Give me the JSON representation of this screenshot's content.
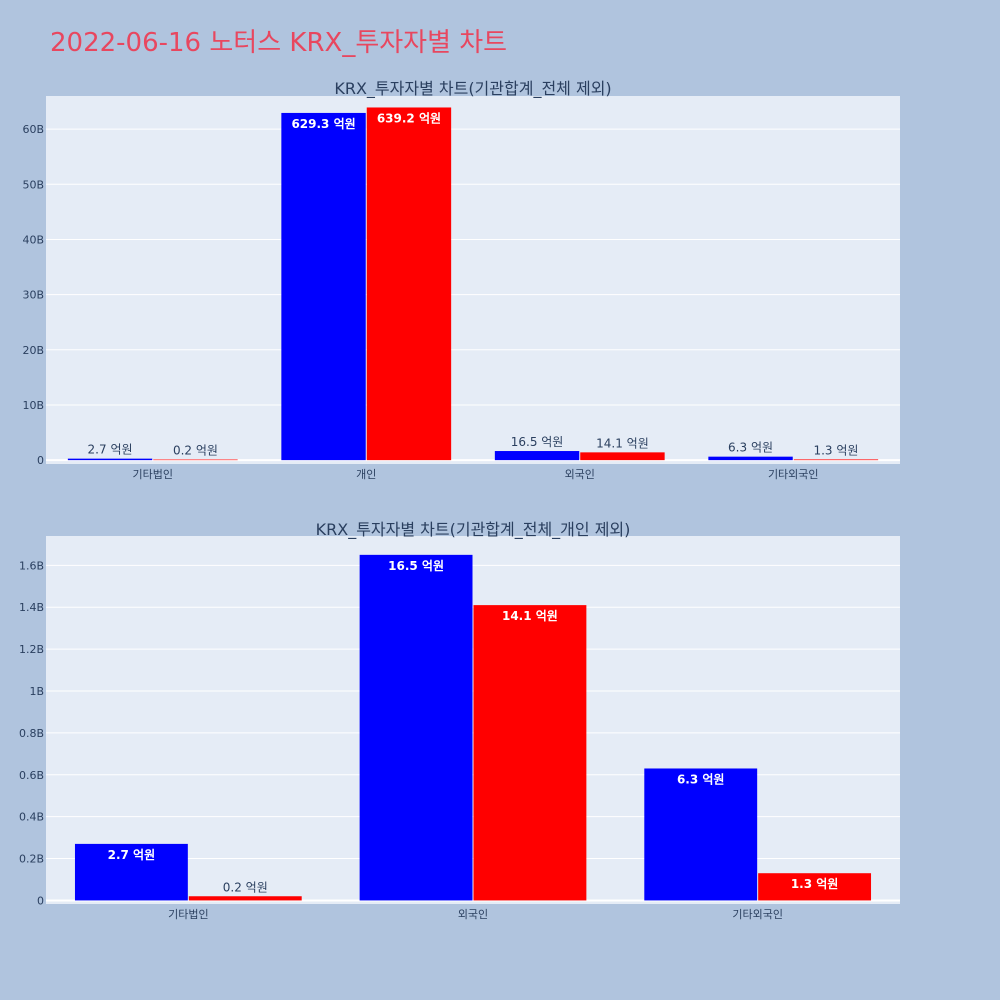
{
  "page": {
    "title": "2022-06-16 노터스 KRX_투자자별 차트"
  },
  "colors": {
    "background": "#b0c4de",
    "plot_background": "#e5ecf6",
    "title": "#e8475f",
    "series_buy": "#0000ff",
    "series_sell": "#ff0000"
  },
  "chart_data": [
    {
      "type": "bar",
      "title": "KRX_투자자별 차트(기관합계_전체 제외)",
      "categories": [
        "기타법인",
        "개인",
        "외국인",
        "기타외국인"
      ],
      "series": [
        {
          "color": "#0000ff",
          "values": [
            270000000,
            62930000000,
            1650000000,
            630000000
          ],
          "labels": [
            "2.7 억원",
            "629.3 억원",
            "16.5 억원",
            "6.3 억원"
          ]
        },
        {
          "color": "#ff0000",
          "values": [
            20000000,
            63920000000,
            1410000000,
            130000000
          ],
          "labels": [
            "0.2 억원",
            "639.2 억원",
            "14.1 억원",
            "1.3 억원"
          ]
        }
      ],
      "ylim": [
        -700000000,
        66000000000
      ],
      "yticks": [
        0,
        10000000000,
        20000000000,
        30000000000,
        40000000000,
        50000000000,
        60000000000
      ],
      "ytick_labels": [
        "0",
        "10B",
        "20B",
        "30B",
        "40B",
        "50B",
        "60B"
      ],
      "grid": true,
      "legend": "none"
    },
    {
      "type": "bar",
      "title": "KRX_투자자별 차트(기관합계_전체_개인 제외)",
      "categories": [
        "기타법인",
        "외국인",
        "기타외국인"
      ],
      "series": [
        {
          "color": "#0000ff",
          "values": [
            270000000,
            1650000000,
            630000000
          ],
          "labels": [
            "2.7 억원",
            "16.5 억원",
            "6.3 억원"
          ]
        },
        {
          "color": "#ff0000",
          "values": [
            20000000,
            1410000000,
            130000000
          ],
          "labels": [
            "0.2 억원",
            "14.1 억원",
            "1.3 억원"
          ]
        }
      ],
      "ylim": [
        -17000000,
        1740000000
      ],
      "yticks": [
        0,
        200000000,
        400000000,
        600000000,
        800000000,
        1000000000,
        1200000000,
        1400000000,
        1600000000
      ],
      "ytick_labels": [
        "0",
        "0.2B",
        "0.4B",
        "0.6B",
        "0.8B",
        "1B",
        "1.2B",
        "1.4B",
        "1.6B"
      ],
      "grid": true,
      "legend": "none"
    }
  ]
}
